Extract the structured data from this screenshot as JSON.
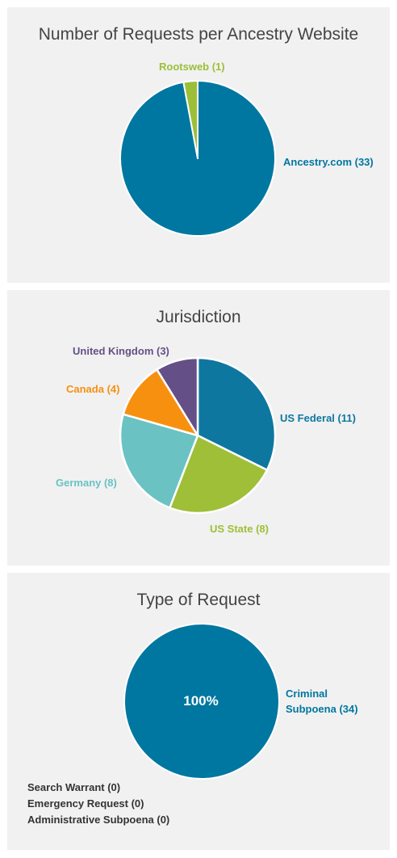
{
  "chart_data": [
    {
      "type": "pie",
      "title": "Number of Requests per Ancestry Website",
      "slices": [
        {
          "label": "Ancestry.com (33)",
          "name": "Ancestry.com",
          "value": 33,
          "color": "#0077a0"
        },
        {
          "label": "Rootsweb (1)",
          "name": "Rootsweb",
          "value": 1,
          "color": "#9cbf38"
        }
      ]
    },
    {
      "type": "pie",
      "title": "Jurisdiction",
      "slices": [
        {
          "label": "US Federal (11)",
          "name": "US Federal",
          "value": 11,
          "color": "#0e77a0"
        },
        {
          "label": "US State (8)",
          "name": "US State",
          "value": 8,
          "color": "#9ebf37"
        },
        {
          "label": "Germany (8)",
          "name": "Germany",
          "value": 8,
          "color": "#6ac2c3"
        },
        {
          "label": "Canada (4)",
          "name": "Canada",
          "value": 4,
          "color": "#f7900f"
        },
        {
          "label": "United Kingdom (3)",
          "name": "United Kingdom",
          "value": 3,
          "color": "#654f87"
        }
      ]
    },
    {
      "type": "pie",
      "title": "Type of Request",
      "center_label": "100%",
      "slices": [
        {
          "label": "Criminal Subpoena (34)",
          "name": "Criminal Subpoena",
          "value": 34,
          "color": "#0077a0"
        },
        {
          "label": "Search Warrant (0)",
          "name": "Search Warrant",
          "value": 0,
          "color": "#333333"
        },
        {
          "label": "Emergency Request (0)",
          "name": "Emergency Request",
          "value": 0,
          "color": "#333333"
        },
        {
          "label": "Administrative Subpoena (0)",
          "name": "Administrative Subpoena",
          "value": 0,
          "color": "#333333"
        }
      ],
      "label_lines": [
        "Criminal",
        "Subpoena (34)"
      ]
    }
  ]
}
